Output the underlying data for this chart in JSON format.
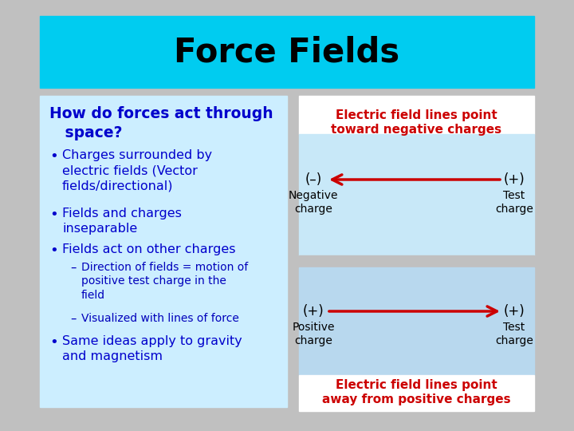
{
  "bg_color": "#c0c0c0",
  "title": "Force Fields",
  "title_bg": "#00ccf0",
  "title_color": "#000000",
  "left_panel_bg": "#cceeff",
  "right_panel_top_bg": "#c8e8f8",
  "right_panel_bottom_bg": "#b8d8ee",
  "red_bar_color": "#cc0000",
  "heading_color": "#0000cc",
  "bullet_color": "#0000cc",
  "sub_bullet_color": "#0000bb",
  "arrow_color": "#cc0000",
  "black": "#000000",
  "white": "#ffffff",
  "top_label_line1": "Electric field lines point",
  "top_label_line2": "toward negative charges",
  "bottom_label_line1": "Electric field lines point",
  "bottom_label_line2": "away from positive charges"
}
